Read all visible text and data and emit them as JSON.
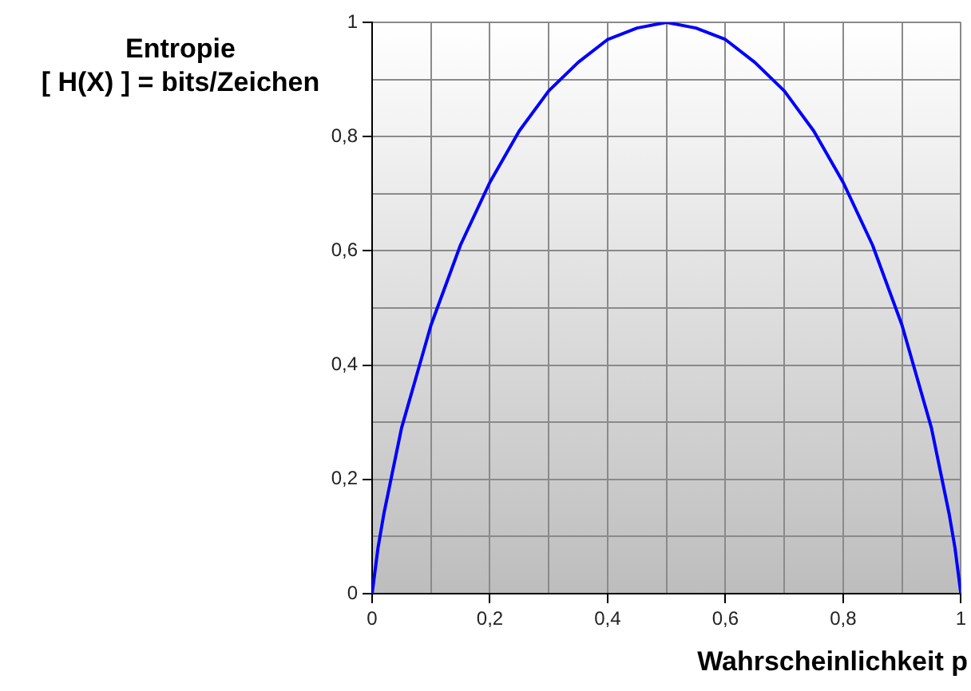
{
  "chart_data": {
    "type": "line",
    "xlabel": "Wahrscheinlichkeit p",
    "ylabel": "Entropie\n[ H(X) ] = bits/Zeichen",
    "x": [
      0,
      0.01,
      0.02,
      0.05,
      0.1,
      0.15,
      0.2,
      0.25,
      0.3,
      0.35,
      0.4,
      0.45,
      0.5,
      0.55,
      0.6,
      0.65,
      0.7,
      0.75,
      0.8,
      0.85,
      0.9,
      0.95,
      0.98,
      0.99,
      1
    ],
    "series": [
      {
        "color": "#0000ff",
        "values": [
          0,
          0.08,
          0.14,
          0.29,
          0.47,
          0.61,
          0.72,
          0.81,
          0.88,
          0.93,
          0.97,
          0.99,
          1,
          0.99,
          0.97,
          0.93,
          0.88,
          0.81,
          0.72,
          0.61,
          0.47,
          0.29,
          0.14,
          0.08,
          0
        ]
      }
    ],
    "xlim": [
      0,
      1
    ],
    "ylim": [
      0,
      1
    ],
    "xticks": [
      0,
      {
        "value": 0.1,
        "label": null
      },
      {
        "value": 0.2,
        "label": "0,2"
      },
      {
        "value": 0.3,
        "label": null
      },
      {
        "value": 0.4,
        "label": "0,4"
      },
      {
        "value": 0.5,
        "label": null
      },
      {
        "value": 0.6,
        "label": "0,6"
      },
      {
        "value": 0.7,
        "label": null
      },
      {
        "value": 0.8,
        "label": "0,8"
      },
      {
        "value": 0.9,
        "label": null
      },
      1
    ],
    "yticks": [
      0,
      {
        "value": 0.1,
        "label": null
      },
      {
        "value": 0.2,
        "label": "0,2"
      },
      {
        "value": 0.3,
        "label": null
      },
      {
        "value": 0.4,
        "label": "0,4"
      },
      {
        "value": 0.5,
        "label": null
      },
      {
        "value": 0.6,
        "label": "0,6"
      },
      {
        "value": 0.7,
        "label": null
      },
      {
        "value": 0.8,
        "label": "0,8"
      },
      {
        "value": 0.9,
        "label": null
      },
      1
    ],
    "grid": true,
    "legend": false,
    "marker": "none",
    "line_style": "solid"
  }
}
